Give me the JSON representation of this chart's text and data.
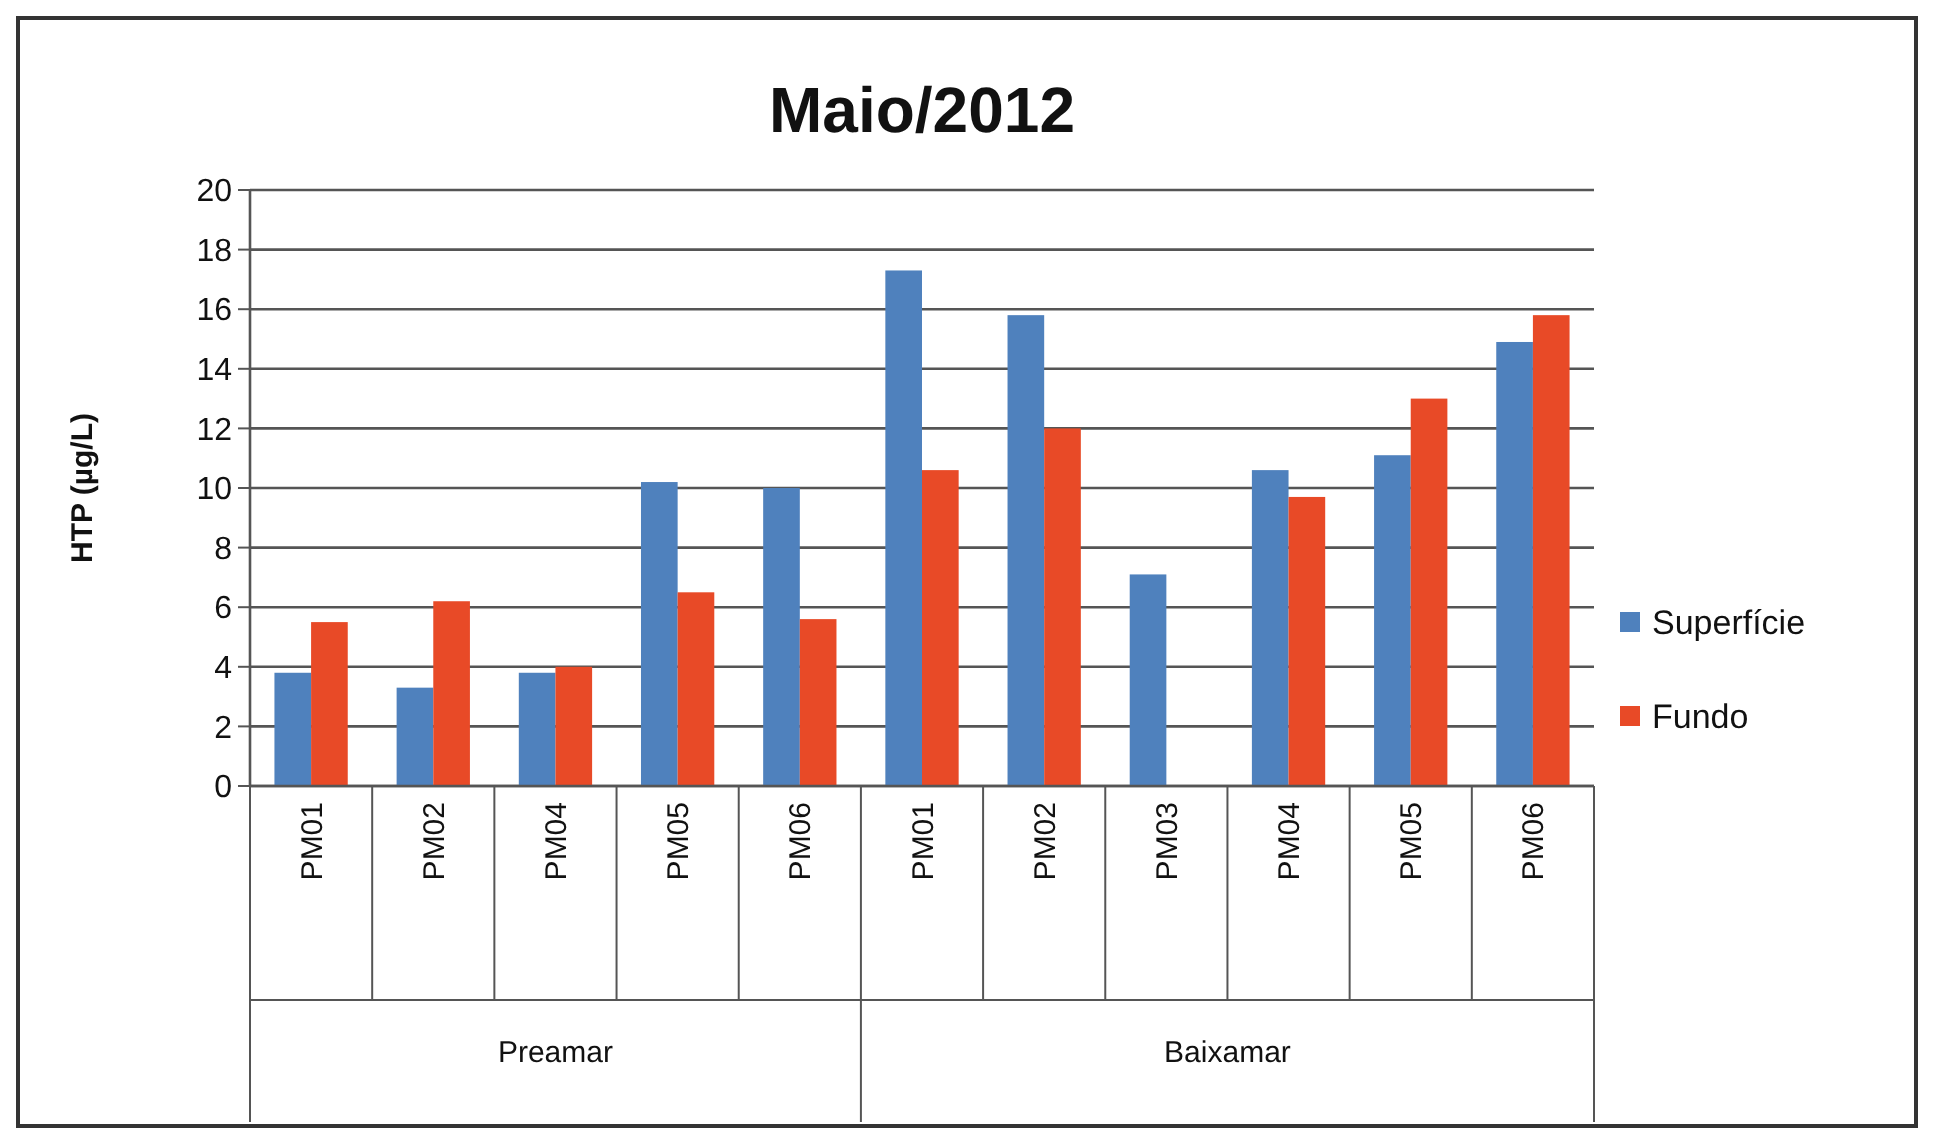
{
  "chart_data": {
    "type": "bar",
    "title": "Maio/2012",
    "ylabel": "HTP (µg/L)",
    "categories": [
      "PM01",
      "PM02",
      "PM04",
      "PM05",
      "PM06",
      "PM01",
      "PM02",
      "PM03",
      "PM04",
      "PM05",
      "PM06"
    ],
    "series": [
      {
        "name": "Superfície",
        "color": "#4f81bd",
        "values": [
          3.8,
          3.3,
          3.8,
          10.2,
          10.0,
          17.3,
          15.8,
          7.1,
          10.6,
          11.1,
          14.9
        ]
      },
      {
        "name": "Fundo",
        "color": "#e84a27",
        "values": [
          5.5,
          6.2,
          4.0,
          6.5,
          5.6,
          10.6,
          12.0,
          null,
          9.7,
          13.0,
          15.8
        ]
      }
    ],
    "annotations": [
      "Preamar",
      "Baixamar"
    ],
    "ylim": [
      0,
      20
    ],
    "yticks": [
      0,
      2,
      4,
      6,
      8,
      10,
      12,
      14,
      16,
      18,
      20
    ],
    "grid": "y",
    "legend": "right"
  }
}
